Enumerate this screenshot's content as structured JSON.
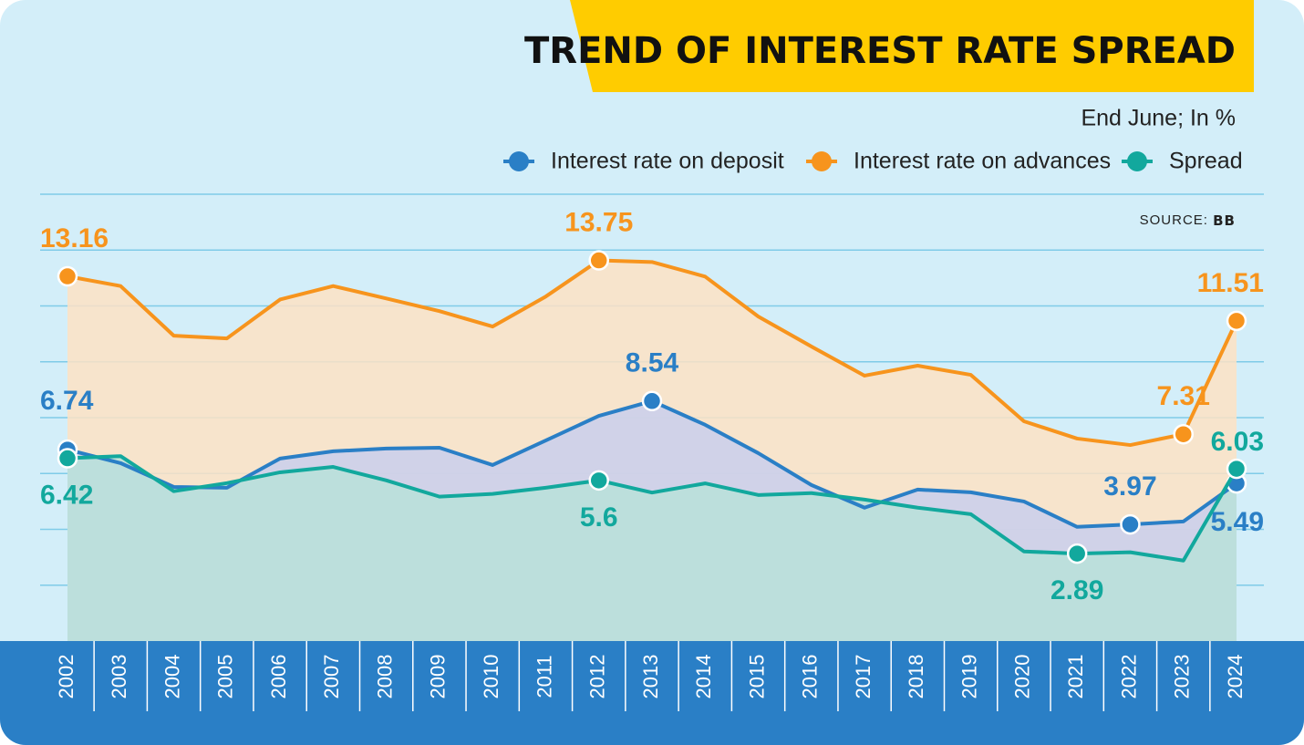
{
  "chart_data": {
    "type": "area",
    "title": "TREND OF INTEREST RATE SPREAD",
    "subtitle": "End June;  In %",
    "source": {
      "label": "SOURCE:",
      "name": "BB"
    },
    "categories": [
      "2002",
      "2003",
      "2004",
      "2005",
      "2006",
      "2007",
      "2008",
      "2009",
      "2010",
      "2011",
      "2012",
      "2013",
      "2014",
      "2015",
      "2016",
      "2017",
      "2018",
      "2019",
      "2020",
      "2021",
      "2022",
      "2023",
      "2024"
    ],
    "ylim": [
      -0.35,
      16.2
    ],
    "series": [
      {
        "name": "Interest rate on advances",
        "color": "#f7941d",
        "fill": "#fde2c4",
        "values": [
          13.16,
          12.8,
          10.96,
          10.86,
          12.3,
          12.8,
          12.34,
          11.87,
          11.3,
          12.41,
          13.75,
          13.69,
          13.15,
          11.67,
          10.56,
          9.48,
          9.85,
          9.51,
          7.79,
          7.15,
          6.91,
          7.31,
          11.51
        ],
        "value_labels": [
          "13.16",
          null,
          null,
          null,
          null,
          null,
          null,
          null,
          null,
          null,
          "13.75",
          null,
          null,
          null,
          null,
          null,
          null,
          null,
          null,
          null,
          null,
          "7.31",
          "11.51"
        ]
      },
      {
        "name": "Interest rate on deposit",
        "color": "#2a7fc6",
        "fill": "#c9cfec",
        "values": [
          6.74,
          6.24,
          5.36,
          5.33,
          6.41,
          6.68,
          6.78,
          6.81,
          6.17,
          7.08,
          7.99,
          8.54,
          7.66,
          6.61,
          5.43,
          4.59,
          5.26,
          5.16,
          4.82,
          3.88,
          3.97,
          4.08,
          5.49
        ],
        "value_labels": [
          "6.74",
          null,
          null,
          null,
          null,
          null,
          null,
          null,
          null,
          null,
          null,
          "8.54",
          null,
          null,
          null,
          null,
          null,
          null,
          null,
          null,
          "3.97",
          null,
          "5.49"
        ]
      },
      {
        "name": "Spread",
        "color": "#12a89d",
        "fill": "#b9e2d9",
        "values": [
          6.42,
          6.5,
          5.2,
          5.5,
          5.9,
          6.1,
          5.6,
          5.0,
          5.1,
          5.33,
          5.6,
          5.15,
          5.49,
          5.06,
          5.13,
          4.89,
          4.59,
          4.35,
          2.97,
          2.89,
          2.94,
          2.63,
          6.03
        ],
        "value_labels": [
          "6.42",
          null,
          null,
          null,
          null,
          null,
          null,
          null,
          null,
          null,
          "5.6",
          null,
          null,
          null,
          null,
          null,
          null,
          null,
          null,
          "2.89",
          null,
          null,
          "6.03"
        ]
      }
    ]
  }
}
